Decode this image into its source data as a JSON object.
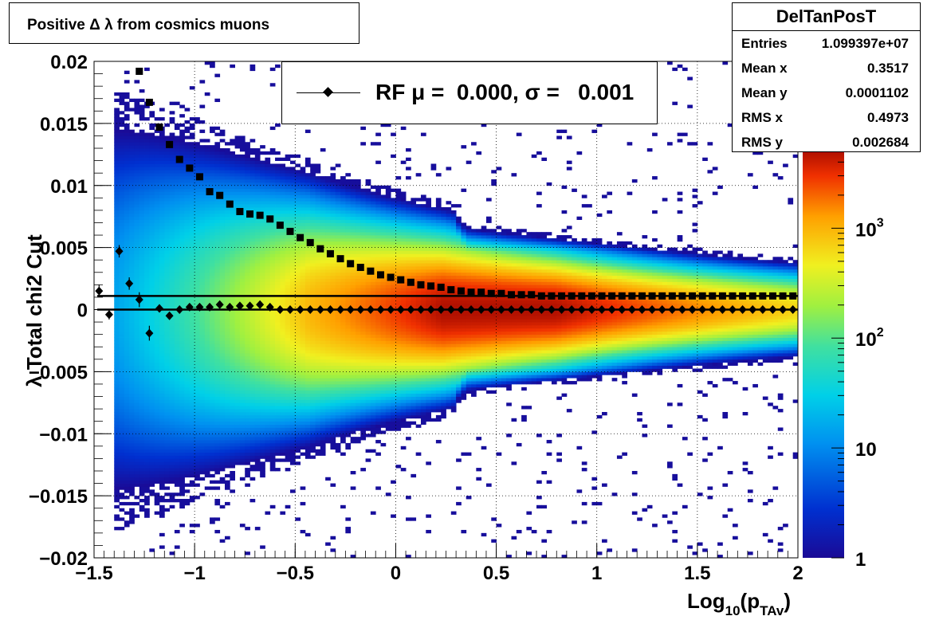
{
  "chart_data": {
    "type": "heatmap",
    "title": "Positive Δ λ from cosmics muons",
    "xlabel": "Log",
    "xlabel_sub": "10",
    "xlabel_paren": "(p",
    "xlabel_sub2": "TAv",
    "xlabel_close": ")",
    "ylabel": "λ  Total chi2 Cut",
    "xlim": [
      -1.5,
      2
    ],
    "ylim": [
      -0.02,
      0.02
    ],
    "x_ticks": [
      -1.5,
      -1,
      -0.5,
      0,
      0.5,
      1,
      1.5,
      2
    ],
    "x_tick_labels": [
      "−1.5",
      "−1",
      "−0.5",
      "0",
      "0.5",
      "1",
      "1.5",
      "2"
    ],
    "y_ticks": [
      -0.02,
      -0.015,
      -0.01,
      -0.005,
      0,
      0.005,
      0.01,
      0.015,
      0.02
    ],
    "y_tick_labels": [
      "−0.02",
      "−0.015",
      "−0.01",
      "−0.005",
      "0",
      "0.005",
      "0.01",
      "0.015",
      "0.02"
    ],
    "grid": true,
    "colorbar": {
      "scale": "log",
      "range": [
        1,
        5000
      ],
      "labels": [
        {
          "value": 1,
          "base": "1",
          "exp": ""
        },
        {
          "value": 10,
          "base": "10",
          "exp": ""
        },
        {
          "value": 100,
          "base": "10",
          "exp": "2"
        },
        {
          "value": 1000,
          "base": "10",
          "exp": "3"
        }
      ]
    },
    "series": [
      {
        "name": "RF",
        "marker": "diamond",
        "x": [
          -1.475,
          -1.425,
          -1.375,
          -1.325,
          -1.275,
          -1.225,
          -1.175,
          -1.125,
          -1.075,
          -1.025,
          -0.975,
          -0.925,
          -0.875,
          -0.825,
          -0.775,
          -0.725,
          -0.675,
          -0.625,
          -0.575,
          -0.525,
          -0.475,
          -0.425,
          -0.375,
          -0.325,
          -0.275,
          -0.225,
          -0.175,
          -0.125,
          -0.075,
          -0.025,
          0.025,
          0.075,
          0.125,
          0.175,
          0.225,
          0.275,
          0.325,
          0.375,
          0.425,
          0.475,
          0.525,
          0.575,
          0.625,
          0.675,
          0.725,
          0.775,
          0.825,
          0.875,
          0.925,
          0.975,
          1.025,
          1.075,
          1.125,
          1.175,
          1.225,
          1.275,
          1.325,
          1.375,
          1.425,
          1.475,
          1.525,
          1.575,
          1.625,
          1.675,
          1.725,
          1.775,
          1.825,
          1.875,
          1.925,
          1.975
        ],
        "y": [
          0.0015,
          -0.0004,
          0.0047,
          0.0021,
          0.0008,
          -0.0019,
          0.0001,
          -0.0005,
          0.0,
          0.0002,
          0.0002,
          0.0002,
          0.0004,
          0.0002,
          0.0003,
          0.0003,
          0.0004,
          0.0002,
          0.0,
          0.0,
          0.0,
          0.0,
          0.0,
          0.0,
          0.0,
          0.0,
          0.0,
          0.0,
          0.0,
          0.0,
          0.0,
          0.0,
          0.0,
          0.0,
          0.0,
          0.0,
          0.0,
          0.0,
          0.0,
          0.0,
          0.0,
          0.0,
          0.0,
          0.0,
          0.0,
          0.0,
          0.0,
          0.0,
          0.0,
          0.0,
          0.0,
          0.0,
          0.0,
          0.0,
          0.0,
          0.0,
          0.0,
          0.0,
          0.0,
          0.0,
          0.0,
          0.0,
          0.0,
          0.0,
          0.0,
          0.0,
          0.0,
          0.0,
          0.0,
          0.0
        ],
        "yerr": [
          0.0005,
          0.0004,
          0.0005,
          0.0005,
          0.0006,
          0.0006,
          0.0003,
          0.0003,
          0.0002,
          0.0001,
          0.0001,
          0.0001,
          0.0001,
          0.0001,
          0.0001,
          0.0001,
          0.0001,
          0.0001,
          0,
          0,
          0,
          0,
          0,
          0,
          0,
          0,
          0,
          0,
          0,
          0,
          0,
          0,
          0,
          0,
          0,
          0,
          0,
          0,
          0,
          0,
          0,
          0,
          0,
          0,
          0,
          0,
          0,
          0,
          0,
          0,
          0,
          0,
          0,
          0,
          0,
          0,
          0,
          0,
          0,
          0,
          0,
          0,
          0,
          0,
          0,
          0,
          0,
          0,
          0,
          0
        ]
      },
      {
        "name": "sigma",
        "marker": "square",
        "x": [
          -1.275,
          -1.225,
          -1.175,
          -1.125,
          -1.075,
          -1.025,
          -0.975,
          -0.925,
          -0.875,
          -0.825,
          -0.775,
          -0.725,
          -0.675,
          -0.625,
          -0.575,
          -0.525,
          -0.475,
          -0.425,
          -0.375,
          -0.325,
          -0.275,
          -0.225,
          -0.175,
          -0.125,
          -0.075,
          -0.025,
          0.025,
          0.075,
          0.125,
          0.175,
          0.225,
          0.275,
          0.325,
          0.375,
          0.425,
          0.475,
          0.525,
          0.575,
          0.625,
          0.675,
          0.725,
          0.775,
          0.825,
          0.875,
          0.925,
          0.975,
          1.025,
          1.075,
          1.125,
          1.175,
          1.225,
          1.275,
          1.325,
          1.375,
          1.425,
          1.475,
          1.525,
          1.575,
          1.625,
          1.675,
          1.725,
          1.775,
          1.825,
          1.875,
          1.925,
          1.975
        ],
        "y": [
          0.0192,
          0.0167,
          0.0147,
          0.0133,
          0.0121,
          0.0114,
          0.0107,
          0.0095,
          0.0092,
          0.0085,
          0.0079,
          0.0077,
          0.0076,
          0.0073,
          0.0068,
          0.0063,
          0.0058,
          0.0054,
          0.0049,
          0.0045,
          0.0041,
          0.0037,
          0.0034,
          0.0031,
          0.0028,
          0.0026,
          0.0024,
          0.0022,
          0.002,
          0.0019,
          0.0018,
          0.0016,
          0.0015,
          0.0014,
          0.0014,
          0.0013,
          0.0013,
          0.0012,
          0.0012,
          0.0012,
          0.0011,
          0.0011,
          0.0011,
          0.0011,
          0.0011,
          0.0011,
          0.0011,
          0.0011,
          0.0011,
          0.0011,
          0.0011,
          0.0011,
          0.0011,
          0.0011,
          0.0011,
          0.0011,
          0.0011,
          0.0011,
          0.0011,
          0.0011,
          0.0011,
          0.0011,
          0.0011,
          0.0011,
          0.0011,
          0.0011
        ]
      }
    ],
    "fit_lines": [
      {
        "y": 0.0011,
        "x_range": [
          -1.5,
          2
        ]
      },
      {
        "y": 0.0,
        "x_range": [
          -1.5,
          2
        ]
      }
    ],
    "legend": {
      "position": "top-center",
      "text": "RF μ =  0.000, σ =   0.001"
    },
    "stats": {
      "title": "DelTanPosT",
      "rows": [
        {
          "key": "Entries",
          "value": "1.099397e+07"
        },
        {
          "key": "Mean x",
          "value": "0.3517"
        },
        {
          "key": "Mean y",
          "value": "0.0001102"
        },
        {
          "key": "RMS x",
          "value": "0.4973"
        },
        {
          "key": "RMS y",
          "value": "0.002684"
        }
      ]
    }
  }
}
